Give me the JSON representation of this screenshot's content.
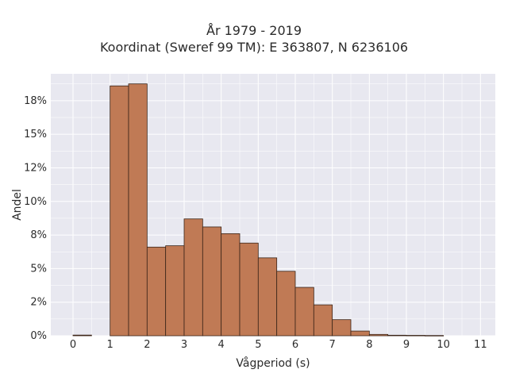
{
  "chart_data": {
    "type": "bar",
    "title": "År 1979 - 2019",
    "subtitle": "Koordinat (Sweref 99 TM): E 363807, N 6236106",
    "xlabel": "Vågperiod (s)",
    "ylabel": "Andel",
    "bin_width": 0.5,
    "bins_start": [
      0,
      0.5,
      1,
      1.5,
      2,
      2.5,
      3,
      3.5,
      4,
      4.5,
      5,
      5.5,
      6,
      6.5,
      7,
      7.5,
      8,
      8.5,
      9,
      9.5,
      10,
      10.5
    ],
    "values": [
      0.05,
      0,
      18.6,
      18.75,
      6.6,
      6.7,
      8.7,
      8.1,
      7.6,
      6.9,
      5.8,
      4.8,
      3.6,
      2.3,
      1.2,
      0.35,
      0.1,
      0.04,
      0.03,
      0.02,
      0,
      0
    ],
    "xticks": [
      0,
      1,
      2,
      3,
      4,
      5,
      6,
      7,
      8,
      9,
      10,
      11
    ],
    "yticks": [
      0,
      2.5,
      5,
      7.5,
      10,
      12.5,
      15,
      17.5
    ],
    "ytick_labels": [
      "0%",
      "2%",
      "5%",
      "8%",
      "10%",
      "12%",
      "15%",
      "18%"
    ],
    "xlim": [
      -0.6,
      11.4
    ],
    "ylim": [
      0,
      19.5
    ],
    "grid": true,
    "colors": {
      "bar_fill": "#c07a55",
      "bar_edge": "#3a2418",
      "plot_bg": "#e8e8f0",
      "grid": "#ffffff"
    }
  }
}
